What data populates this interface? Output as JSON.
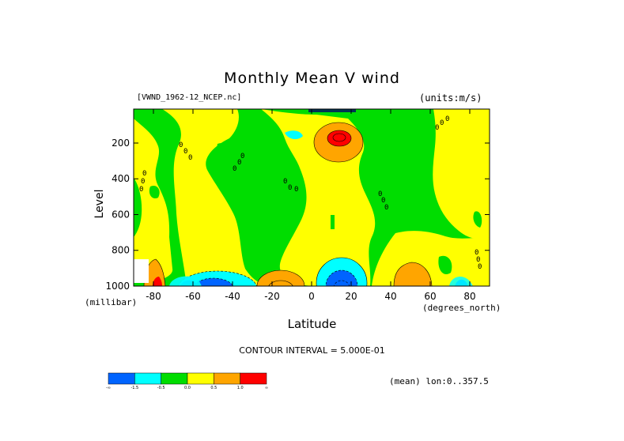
{
  "chart_data": {
    "type": "heatmap",
    "title": "Monthly Mean V wind",
    "file_label": "[VWND_1962-12_NCEP.nc]",
    "units_label": "(units:m/s)",
    "xlabel": "Latitude",
    "x_unit_label": "(degrees_north)",
    "ylabel": "Level",
    "y_unit_label": "(millibar)",
    "contour_interval_text": "CONTOUR INTERVAL = 5.000E-01",
    "mean_note": "(mean) lon:0..357.5",
    "xlim": [
      -90,
      90
    ],
    "ylim": [
      1000,
      10
    ],
    "x_ticks": [
      {
        "value": -80,
        "label": "-80"
      },
      {
        "value": -60,
        "label": "-60"
      },
      {
        "value": -40,
        "label": "-40"
      },
      {
        "value": -20,
        "label": "-20"
      },
      {
        "value": 0,
        "label": "0"
      },
      {
        "value": 20,
        "label": "20"
      },
      {
        "value": 40,
        "label": "40"
      },
      {
        "value": 60,
        "label": "60"
      },
      {
        "value": 80,
        "label": "80"
      }
    ],
    "y_ticks": [
      {
        "value": 200,
        "label": "200"
      },
      {
        "value": 400,
        "label": "400"
      },
      {
        "value": 600,
        "label": "600"
      },
      {
        "value": 800,
        "label": "800"
      },
      {
        "value": 1000,
        "label": "1000"
      }
    ],
    "colorbar": {
      "colors": [
        "#0064ff",
        "#00ffff",
        "#00dd00",
        "#ffff00",
        "#ffa500",
        "#ff0000"
      ],
      "tick_labels": [
        "-∞",
        "-1.5",
        "-0.5",
        "0.0",
        "0.5",
        "1.0",
        "∞"
      ]
    },
    "colors": {
      "positive_weak": "#ffff00",
      "positive_mid": "#ffa500",
      "positive_strong": "#ff0000",
      "neutral": "#00dd00",
      "negative_weak": "#00ffff",
      "negative_strong": "#0064ff"
    },
    "features": [
      {
        "name": "upper-positive-jet",
        "lat": 14,
        "level": 160,
        "peak": 1.5
      },
      {
        "name": "lower-negative-tropical",
        "lat": 13,
        "level": 960,
        "peak": -1.5
      },
      {
        "name": "lower-negative-south",
        "lat": -50,
        "level": 980,
        "peak": -1.2
      },
      {
        "name": "lower-positive-south",
        "lat": -22,
        "level": 960,
        "peak": 0.8
      },
      {
        "name": "lower-positive-north",
        "lat": 50,
        "level": 940,
        "peak": 0.7
      },
      {
        "name": "polar-south-positive",
        "lat": -80,
        "level": 980,
        "peak": 1.0
      }
    ]
  }
}
